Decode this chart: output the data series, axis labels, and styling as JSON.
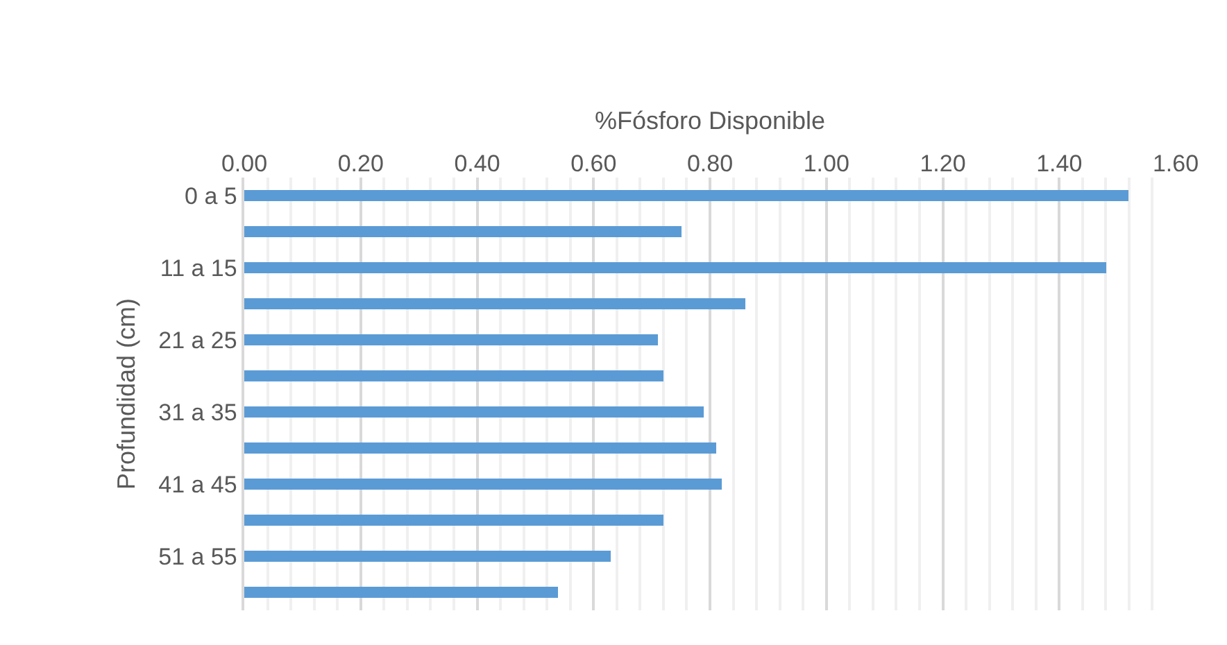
{
  "chart_data": {
    "type": "bar",
    "orientation": "horizontal",
    "xlabel": "%Fósforo Disponible",
    "ylabel": "Profundidad (cm)",
    "categories": [
      "0 a 5",
      null,
      "11 a 15",
      null,
      "21 a 25",
      null,
      "31 a 35",
      null,
      "41 a 45",
      null,
      "51 a 55",
      null
    ],
    "values": [
      1.52,
      0.75,
      1.48,
      0.86,
      0.71,
      0.72,
      0.79,
      0.81,
      0.82,
      0.72,
      0.63,
      0.54
    ],
    "color": "#5b9bd5",
    "xlim": [
      0,
      1.6
    ],
    "xticks": [
      {
        "value": 0,
        "label": "0.00"
      },
      {
        "value": 0.04,
        "label": null
      },
      {
        "value": 0.08,
        "label": null
      },
      {
        "value": 0.12,
        "label": null
      },
      {
        "value": 0.16,
        "label": null
      },
      {
        "value": 0.2,
        "label": "0.20"
      },
      {
        "value": 0.24,
        "label": null
      },
      {
        "value": 0.28,
        "label": null
      },
      {
        "value": 0.32,
        "label": null
      },
      {
        "value": 0.36,
        "label": null
      },
      {
        "value": 0.4,
        "label": "0.40"
      },
      {
        "value": 0.44,
        "label": null
      },
      {
        "value": 0.48,
        "label": null
      },
      {
        "value": 0.52,
        "label": null
      },
      {
        "value": 0.56,
        "label": null
      },
      {
        "value": 0.6,
        "label": "0.60"
      },
      {
        "value": 0.64,
        "label": null
      },
      {
        "value": 0.68,
        "label": null
      },
      {
        "value": 0.72,
        "label": null
      },
      {
        "value": 0.76,
        "label": null
      },
      {
        "value": 0.8,
        "label": "0.80"
      },
      {
        "value": 0.84,
        "label": null
      },
      {
        "value": 0.88,
        "label": null
      },
      {
        "value": 0.92,
        "label": null
      },
      {
        "value": 0.96,
        "label": null
      },
      {
        "value": 1.0,
        "label": "1.00"
      },
      {
        "value": 1.04,
        "label": null
      },
      {
        "value": 1.08,
        "label": null
      },
      {
        "value": 1.12,
        "label": null
      },
      {
        "value": 1.16,
        "label": null
      },
      {
        "value": 1.2,
        "label": "1.20"
      },
      {
        "value": 1.24,
        "label": null
      },
      {
        "value": 1.28,
        "label": null
      },
      {
        "value": 1.32,
        "label": null
      },
      {
        "value": 1.36,
        "label": null
      },
      {
        "value": 1.4,
        "label": "1.40"
      },
      {
        "value": 1.44,
        "label": null
      },
      {
        "value": 1.48,
        "label": null
      },
      {
        "value": 1.52,
        "label": null
      },
      {
        "value": 1.56,
        "label": null
      },
      {
        "value": 1.6,
        "label": "1.60"
      }
    ],
    "grid": "x"
  }
}
